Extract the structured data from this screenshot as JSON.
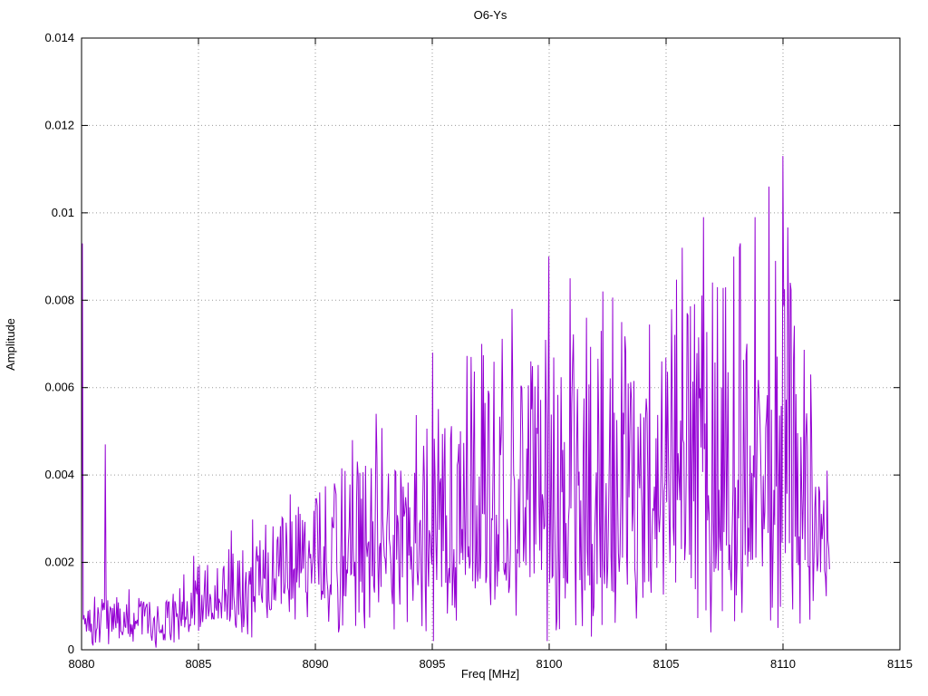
{
  "chart_data": {
    "type": "line",
    "title": "O6-Ys",
    "xlabel": "Freq [MHz]",
    "ylabel": "Amplitude",
    "xlim": [
      8080,
      8115
    ],
    "ylim": [
      0,
      0.014
    ],
    "x_ticks": [
      8080,
      8085,
      8090,
      8095,
      8100,
      8105,
      8110,
      8115
    ],
    "x_tick_labels": [
      "8080",
      "8085",
      "8090",
      "8095",
      "8100",
      "8105",
      "8110",
      "8115"
    ],
    "y_ticks": [
      0,
      0.002,
      0.004,
      0.006,
      0.008,
      0.01,
      0.012,
      0.014
    ],
    "y_tick_labels": [
      "0",
      "0.002",
      "0.004",
      "0.006",
      "0.008",
      "0.01",
      "0.012",
      "0.014"
    ],
    "grid": true,
    "legend": "none",
    "line_color": "#9400d3",
    "grid_color": "#9a9a9a",
    "border_color": "#000000",
    "series_name": "O6-Ys",
    "x_start": 8080,
    "x_end": 8112,
    "sample_step": 0.035,
    "seed": 1337,
    "noise_envelope": [
      [
        8080.0,
        0.0004,
        0.0011
      ],
      [
        8081.0,
        0.0004,
        0.0014
      ],
      [
        8082.0,
        0.0004,
        0.0013
      ],
      [
        8083.0,
        0.0003,
        0.0011
      ],
      [
        8084.0,
        0.0004,
        0.0014
      ],
      [
        8085.0,
        0.0006,
        0.0019
      ],
      [
        8086.0,
        0.0007,
        0.0022
      ],
      [
        8087.0,
        0.0008,
        0.0025
      ],
      [
        8088.0,
        0.0009,
        0.0029
      ],
      [
        8089.0,
        0.001,
        0.0033
      ],
      [
        8090.0,
        0.0011,
        0.0036
      ],
      [
        8091.0,
        0.0012,
        0.0041
      ],
      [
        8092.0,
        0.0013,
        0.0046
      ],
      [
        8093.0,
        0.0013,
        0.0043
      ],
      [
        8094.0,
        0.0014,
        0.0045
      ],
      [
        8095.0,
        0.0014,
        0.005
      ],
      [
        8096.0,
        0.0015,
        0.0053
      ],
      [
        8097.0,
        0.0015,
        0.006
      ],
      [
        8098.0,
        0.0016,
        0.0064
      ],
      [
        8099.0,
        0.0015,
        0.0061
      ],
      [
        8100.0,
        0.0015,
        0.0077
      ],
      [
        8101.0,
        0.0014,
        0.0075
      ],
      [
        8102.0,
        0.0013,
        0.007
      ],
      [
        8103.0,
        0.0013,
        0.0071
      ],
      [
        8104.0,
        0.0014,
        0.0063
      ],
      [
        8105.0,
        0.0015,
        0.0069
      ],
      [
        8106.0,
        0.0016,
        0.008
      ],
      [
        8107.0,
        0.0017,
        0.0085
      ],
      [
        8108.0,
        0.0018,
        0.0083
      ],
      [
        8109.0,
        0.0019,
        0.009
      ],
      [
        8110.0,
        0.002,
        0.0091
      ],
      [
        8110.5,
        0.002,
        0.0078
      ],
      [
        8111.0,
        0.0018,
        0.006
      ],
      [
        8111.5,
        0.0017,
        0.0045
      ],
      [
        8112.0,
        0.0016,
        0.0027
      ]
    ],
    "notable_peaks": [
      [
        8080.05,
        0.0093
      ],
      [
        8081.0,
        0.0047
      ],
      [
        8086.3,
        0.0023
      ],
      [
        8088.6,
        0.003
      ],
      [
        8090.2,
        0.0036
      ],
      [
        8091.6,
        0.0048
      ],
      [
        8092.6,
        0.0054
      ],
      [
        8093.4,
        0.0041
      ],
      [
        8095.0,
        0.0068
      ],
      [
        8096.2,
        0.005
      ],
      [
        8097.1,
        0.007
      ],
      [
        8098.4,
        0.0078
      ],
      [
        8099.2,
        0.0066
      ],
      [
        8100.0,
        0.009
      ],
      [
        8100.9,
        0.0085
      ],
      [
        8101.6,
        0.0076
      ],
      [
        8102.3,
        0.0082
      ],
      [
        8103.1,
        0.0075
      ],
      [
        8104.8,
        0.0066
      ],
      [
        8105.7,
        0.0092
      ],
      [
        8106.6,
        0.0099
      ],
      [
        8107.2,
        0.0083
      ],
      [
        8107.9,
        0.009
      ],
      [
        8108.8,
        0.0099
      ],
      [
        8109.4,
        0.0106
      ],
      [
        8110.0,
        0.0113
      ],
      [
        8110.3,
        0.0084
      ],
      [
        8111.2,
        0.0063
      ],
      [
        8111.9,
        0.0041
      ]
    ],
    "dips": [
      [
        8080.5,
        0.0001
      ],
      [
        8083.2,
        5e-05
      ],
      [
        8091.0,
        0.0004
      ],
      [
        8095.05,
        0.0002
      ],
      [
        8099.9,
        0.0002
      ],
      [
        8101.8,
        0.0003
      ],
      [
        8106.9,
        0.0004
      ],
      [
        8109.8,
        0.0005
      ]
    ]
  }
}
